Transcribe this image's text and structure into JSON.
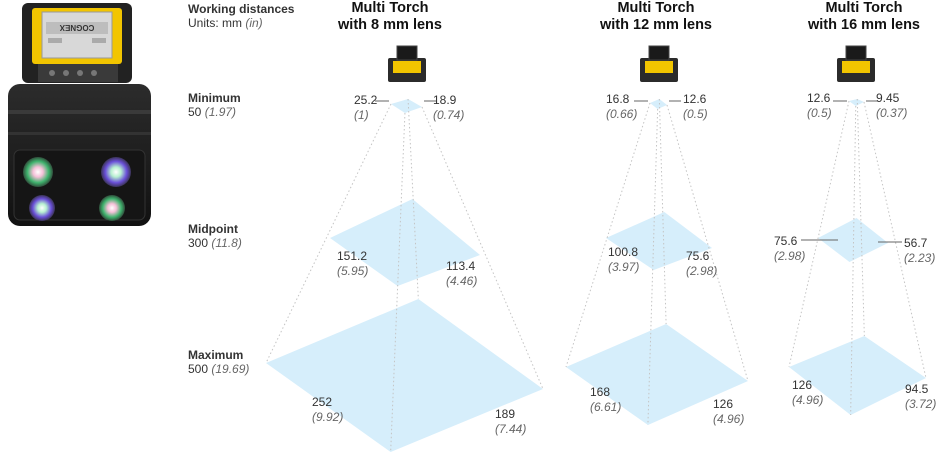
{
  "legend": {
    "title": "Working distances",
    "units_prefix": "Units: mm ",
    "units_suffix": "(in)"
  },
  "rows": {
    "minimum": {
      "name": "Minimum",
      "mm": "50",
      "in": "(1.97)"
    },
    "midpoint": {
      "name": "Midpoint",
      "mm": "300",
      "in": "(11.8)"
    },
    "maximum": {
      "name": "Maximum",
      "mm": "500",
      "in": "(19.69)"
    }
  },
  "lenses": [
    {
      "title_line1": "Multi Torch",
      "title_line2": "with 8 mm lens",
      "min": {
        "left_mm": "25.2",
        "left_in": "(1)",
        "right_mm": "18.9",
        "right_in": "(0.74)"
      },
      "mid": {
        "left_mm": "151.2",
        "left_in": "(5.95)",
        "right_mm": "113.4",
        "right_in": "(4.46)"
      },
      "max": {
        "left_mm": "252",
        "left_in": "(9.92)",
        "right_mm": "189",
        "right_in": "(7.44)"
      }
    },
    {
      "title_line1": "Multi Torch",
      "title_line2": "with 12 mm lens",
      "min": {
        "left_mm": "16.8",
        "left_in": "(0.66)",
        "right_mm": "12.6",
        "right_in": "(0.5)"
      },
      "mid": {
        "left_mm": "100.8",
        "left_in": "(3.97)",
        "right_mm": "75.6",
        "right_in": "(2.98)"
      },
      "max": {
        "left_mm": "168",
        "left_in": "(6.61)",
        "right_mm": "126",
        "right_in": "(4.96)"
      }
    },
    {
      "title_line1": "Multi Torch",
      "title_line2": "with 16 mm lens",
      "min": {
        "left_mm": "12.6",
        "left_in": "(0.5)",
        "right_mm": "9.45",
        "right_in": "(0.37)"
      },
      "mid": {
        "left_mm": "75.6",
        "left_in": "(2.98)",
        "right_mm": "56.7",
        "right_in": "(2.23)"
      },
      "max": {
        "left_mm": "126",
        "left_in": "(4.96)",
        "right_mm": "94.5",
        "right_in": "(3.72)"
      }
    }
  ],
  "device": {
    "brand": "COGNEX"
  },
  "colors": {
    "fov_fill": "#d6eefb",
    "guide_line": "#c4c4c4",
    "leader_line": "#666666",
    "device_body": "#1b1b1b",
    "device_accent": "#f2c500"
  }
}
